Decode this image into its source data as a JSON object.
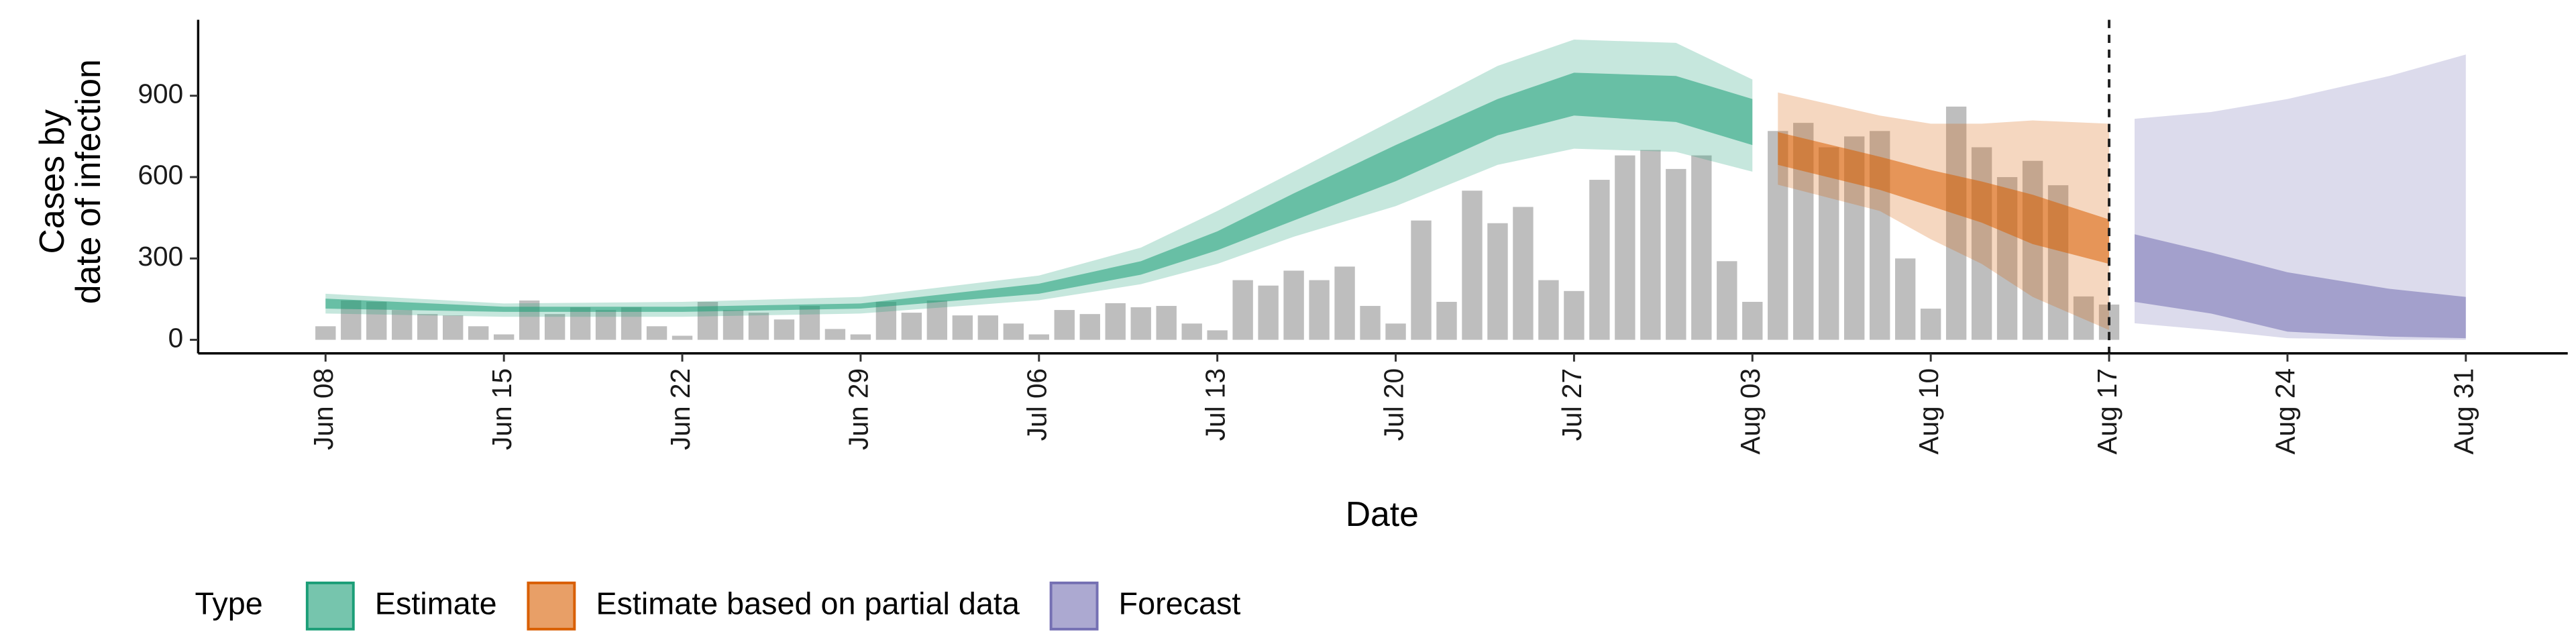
{
  "chart_data": {
    "type": "bar_band",
    "x_label": "Date",
    "y_label": [
      "Cases by",
      "date of infection"
    ],
    "legend_title": "Type",
    "legend_position": "bottom-left",
    "xlim": [
      "Jun 03",
      "Sep 04"
    ],
    "xticks": [
      "Jun 08",
      "Jun 15",
      "Jun 22",
      "Jun 29",
      "Jul 06",
      "Jul 13",
      "Jul 20",
      "Jul 27",
      "Aug 03",
      "Aug 10",
      "Aug 17",
      "Aug 24",
      "Aug 31"
    ],
    "ylim": [
      -50,
      1180
    ],
    "yticks": [
      0,
      300,
      600,
      900
    ],
    "vline": "Aug 17",
    "bars": {
      "color": "#bebebe",
      "x": [
        "Jun 08",
        "Jun 09",
        "Jun 10",
        "Jun 11",
        "Jun 12",
        "Jun 13",
        "Jun 14",
        "Jun 15",
        "Jun 16",
        "Jun 17",
        "Jun 18",
        "Jun 19",
        "Jun 20",
        "Jun 21",
        "Jun 22",
        "Jun 23",
        "Jun 24",
        "Jun 25",
        "Jun 26",
        "Jun 27",
        "Jun 28",
        "Jun 29",
        "Jun 30",
        "Jul 01",
        "Jul 02",
        "Jul 03",
        "Jul 04",
        "Jul 05",
        "Jul 06",
        "Jul 07",
        "Jul 08",
        "Jul 09",
        "Jul 10",
        "Jul 11",
        "Jul 12",
        "Jul 13",
        "Jul 14",
        "Jul 15",
        "Jul 16",
        "Jul 17",
        "Jul 18",
        "Jul 19",
        "Jul 20",
        "Jul 21",
        "Jul 22",
        "Jul 23",
        "Jul 24",
        "Jul 25",
        "Jul 26",
        "Jul 27",
        "Jul 28",
        "Jul 29",
        "Jul 30",
        "Jul 31",
        "Aug 01",
        "Aug 02",
        "Aug 03",
        "Aug 04",
        "Aug 05",
        "Aug 06",
        "Aug 07",
        "Aug 08",
        "Aug 09",
        "Aug 10",
        "Aug 11",
        "Aug 12",
        "Aug 13",
        "Aug 14",
        "Aug 15",
        "Aug 16",
        "Aug 17"
      ],
      "values": [
        50,
        145,
        140,
        110,
        95,
        90,
        50,
        20,
        145,
        95,
        120,
        110,
        120,
        50,
        15,
        140,
        110,
        100,
        75,
        125,
        40,
        20,
        140,
        100,
        145,
        90,
        90,
        60,
        20,
        110,
        95,
        135,
        120,
        125,
        60,
        35,
        220,
        200,
        255,
        220,
        270,
        125,
        60,
        440,
        140,
        550,
        430,
        490,
        220,
        180,
        590,
        680,
        700,
        630,
        680,
        290,
        140,
        770,
        800,
        710,
        750,
        770,
        300,
        115,
        860,
        710,
        600,
        660,
        570,
        160,
        130
      ]
    },
    "bands": [
      {
        "name": "Estimate",
        "color": "#1b9e77",
        "x": [
          "Jun 08",
          "Jun 15",
          "Jun 22",
          "Jun 29",
          "Jul 06",
          "Jul 10",
          "Jul 13",
          "Jul 16",
          "Jul 20",
          "Jul 24",
          "Jul 27",
          "Jul 31",
          "Aug 03"
        ],
        "upper_90": [
          170,
          134,
          140,
          158,
          237,
          340,
          475,
          620,
          815,
          1010,
          1107,
          1095,
          960
        ],
        "upper_50": [
          152,
          122,
          122,
          134,
          207,
          290,
          400,
          540,
          718,
          888,
          985,
          973,
          888
        ],
        "lower_50": [
          115,
          103,
          103,
          115,
          170,
          240,
          330,
          440,
          585,
          754,
          827,
          803,
          718
        ],
        "lower_90": [
          97,
          85,
          85,
          97,
          146,
          205,
          280,
          380,
          493,
          645,
          705,
          693,
          620
        ]
      },
      {
        "name": "Estimate based on partial data",
        "color": "#d95f02",
        "x": [
          "Aug 04",
          "Aug 08",
          "Aug 10",
          "Aug 12",
          "Aug 14",
          "Aug 17"
        ],
        "upper_90": [
          912,
          827,
          797,
          797,
          809,
          797
        ],
        "upper_50": [
          766,
          675,
          626,
          584,
          535,
          444
        ],
        "lower_50": [
          645,
          553,
          493,
          432,
          353,
          280
        ],
        "lower_90": [
          572,
          475,
          371,
          280,
          158,
          36
        ]
      },
      {
        "name": "Forecast",
        "color": "#7570b3",
        "x": [
          "Aug 18",
          "Aug 21",
          "Aug 24",
          "Aug 28",
          "Aug 31"
        ],
        "upper_90": [
          815,
          840,
          888,
          973,
          1052
        ],
        "upper_50": [
          389,
          322,
          249,
          188,
          158
        ],
        "lower_50": [
          140,
          97,
          30,
          12,
          6
        ],
        "lower_90": [
          61,
          36,
          6,
          0,
          0
        ]
      }
    ]
  }
}
